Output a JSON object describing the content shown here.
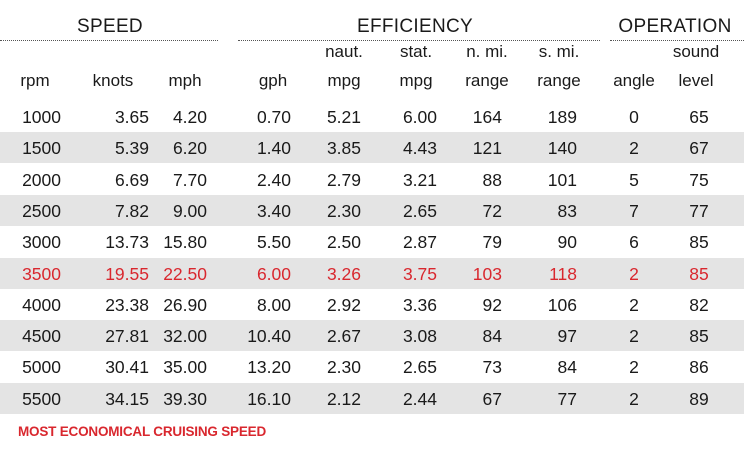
{
  "groups": {
    "speed": "SPEED",
    "efficiency": "EFFICIENCY",
    "operation": "OPERATION"
  },
  "headers": {
    "rpm": [
      "",
      "rpm"
    ],
    "knots": [
      "",
      "knots"
    ],
    "mph": [
      "",
      "mph"
    ],
    "gph": [
      "",
      "gph"
    ],
    "naut_mpg": [
      "naut.",
      "mpg"
    ],
    "stat_mpg": [
      "stat.",
      "mpg"
    ],
    "nmi_range": [
      "n. mi.",
      "range"
    ],
    "smi_range": [
      "s. mi.",
      "range"
    ],
    "angle": [
      "",
      "angle"
    ],
    "sound": [
      "sound",
      "level"
    ]
  },
  "rows": [
    [
      "1000",
      "3.65",
      "4.20",
      "0.70",
      "5.21",
      "6.00",
      "164",
      "189",
      "0",
      "65"
    ],
    [
      "1500",
      "5.39",
      "6.20",
      "1.40",
      "3.85",
      "4.43",
      "121",
      "140",
      "2",
      "67"
    ],
    [
      "2000",
      "6.69",
      "7.70",
      "2.40",
      "2.79",
      "3.21",
      "88",
      "101",
      "5",
      "75"
    ],
    [
      "2500",
      "7.82",
      "9.00",
      "3.40",
      "2.30",
      "2.65",
      "72",
      "83",
      "7",
      "77"
    ],
    [
      "3000",
      "13.73",
      "15.80",
      "5.50",
      "2.50",
      "2.87",
      "79",
      "90",
      "6",
      "85"
    ],
    [
      "3500",
      "19.55",
      "22.50",
      "6.00",
      "3.26",
      "3.75",
      "103",
      "118",
      "2",
      "85"
    ],
    [
      "4000",
      "23.38",
      "26.90",
      "8.00",
      "2.92",
      "3.36",
      "92",
      "106",
      "2",
      "82"
    ],
    [
      "4500",
      "27.81",
      "32.00",
      "10.40",
      "2.67",
      "3.08",
      "84",
      "97",
      "2",
      "85"
    ],
    [
      "5000",
      "30.41",
      "35.00",
      "13.20",
      "2.30",
      "2.65",
      "73",
      "84",
      "2",
      "86"
    ],
    [
      "5500",
      "34.15",
      "39.30",
      "16.10",
      "2.12",
      "2.44",
      "67",
      "77",
      "2",
      "89"
    ]
  ],
  "highlight_row_rpm": "3500",
  "footnote": "MOST ECONOMICAL CRUISING SPEED",
  "colors": {
    "highlight": "#d9272e",
    "shade": "#e4e4e4",
    "text": "#1a1a1a"
  }
}
